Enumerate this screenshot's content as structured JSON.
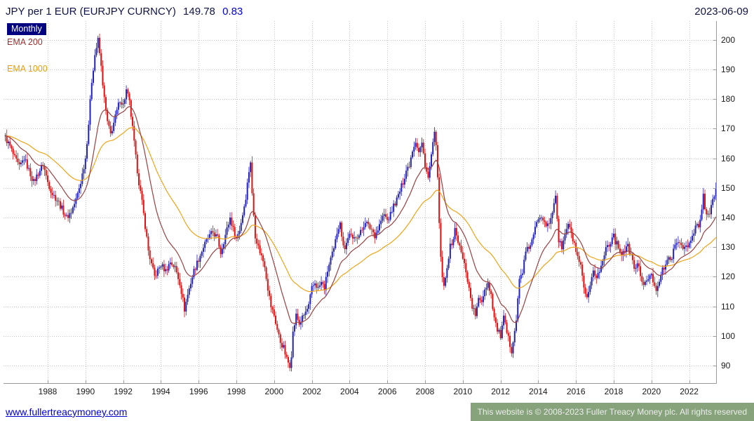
{
  "header": {
    "instrument": "JPY per 1 EUR (EURJPY CURNCY)",
    "price": "149.78",
    "change": "0.83",
    "date": "2023-06-09"
  },
  "legend": {
    "timeframe": "Monthly",
    "ema_fast": "EMA 200",
    "ema_slow": "EMA 1000"
  },
  "footer": {
    "site": "www.fullertreacymoney.com",
    "copyright": "This website is © 2008-2023 Fuller Treacy Money plc. All rights reserved"
  },
  "chart_data": {
    "type": "candlestick",
    "title": "JPY per 1 EUR (EURJPY CURNCY)",
    "timeframe": "Monthly",
    "last_price": 149.78,
    "change": 0.83,
    "up_color": "#2222bb",
    "down_color": "#dd1111",
    "grid_color": "#c4c4c4",
    "axis_color": "#999999",
    "ylim": [
      83.8,
      206.4
    ],
    "xlim": [
      1985.7,
      2023.5
    ],
    "y_ticks": [
      90,
      100,
      110,
      120,
      130,
      140,
      150,
      160,
      170,
      180,
      190,
      200
    ],
    "x_ticks": [
      1988,
      1990,
      1992,
      1994,
      1996,
      1998,
      2000,
      2002,
      2004,
      2006,
      2008,
      2010,
      2012,
      2014,
      2016,
      2018,
      2020,
      2022
    ],
    "overlays": [
      {
        "name": "EMA 200",
        "color": "#994040",
        "period_months": 20
      },
      {
        "name": "EMA 1000",
        "color": "#eda418",
        "period_months": 55
      }
    ],
    "anchors": [
      [
        1985.75,
        167
      ],
      [
        1986.0,
        164
      ],
      [
        1986.25,
        160
      ],
      [
        1986.5,
        157
      ],
      [
        1986.75,
        160
      ],
      [
        1987.0,
        156
      ],
      [
        1987.25,
        152
      ],
      [
        1987.5,
        155
      ],
      [
        1987.75,
        158
      ],
      [
        1988.0,
        152
      ],
      [
        1988.25,
        148
      ],
      [
        1988.5,
        146
      ],
      [
        1988.75,
        143
      ],
      [
        1989.0,
        140
      ],
      [
        1989.25,
        142
      ],
      [
        1989.5,
        146
      ],
      [
        1989.75,
        152
      ],
      [
        1990.0,
        160
      ],
      [
        1990.17,
        172
      ],
      [
        1990.33,
        186
      ],
      [
        1990.5,
        195
      ],
      [
        1990.67,
        200
      ],
      [
        1990.83,
        191
      ],
      [
        1991.0,
        180
      ],
      [
        1991.17,
        172
      ],
      [
        1991.33,
        168
      ],
      [
        1991.5,
        172
      ],
      [
        1991.67,
        176
      ],
      [
        1991.83,
        180
      ],
      [
        1992.0,
        178
      ],
      [
        1992.17,
        183
      ],
      [
        1992.33,
        179
      ],
      [
        1992.5,
        170
      ],
      [
        1992.67,
        160
      ],
      [
        1992.83,
        152
      ],
      [
        1993.0,
        145
      ],
      [
        1993.17,
        137
      ],
      [
        1993.33,
        129
      ],
      [
        1993.5,
        124
      ],
      [
        1993.67,
        120
      ],
      [
        1993.83,
        122
      ],
      [
        1994.0,
        124
      ],
      [
        1994.25,
        122
      ],
      [
        1994.5,
        125
      ],
      [
        1994.75,
        123
      ],
      [
        1995.0,
        118
      ],
      [
        1995.17,
        112
      ],
      [
        1995.25,
        109
      ],
      [
        1995.42,
        114
      ],
      [
        1995.58,
        118
      ],
      [
        1995.75,
        122
      ],
      [
        1996.0,
        126
      ],
      [
        1996.25,
        130
      ],
      [
        1996.5,
        133
      ],
      [
        1996.75,
        135
      ],
      [
        1997.0,
        133
      ],
      [
        1997.17,
        128
      ],
      [
        1997.33,
        132
      ],
      [
        1997.5,
        136
      ],
      [
        1997.67,
        140
      ],
      [
        1997.83,
        136
      ],
      [
        1998.0,
        133
      ],
      [
        1998.17,
        136
      ],
      [
        1998.33,
        141
      ],
      [
        1998.5,
        147
      ],
      [
        1998.67,
        156
      ],
      [
        1998.75,
        159
      ],
      [
        1998.83,
        148
      ],
      [
        1999.0,
        134
      ],
      [
        1999.17,
        130
      ],
      [
        1999.33,
        127
      ],
      [
        1999.5,
        124
      ],
      [
        1999.67,
        116
      ],
      [
        1999.83,
        110
      ],
      [
        2000.0,
        107
      ],
      [
        2000.17,
        102
      ],
      [
        2000.33,
        98
      ],
      [
        2000.5,
        96
      ],
      [
        2000.67,
        92
      ],
      [
        2000.83,
        90
      ],
      [
        2000.92,
        94
      ],
      [
        2001.0,
        101
      ],
      [
        2001.17,
        107
      ],
      [
        2001.33,
        104
      ],
      [
        2001.5,
        106
      ],
      [
        2001.67,
        108
      ],
      [
        2001.83,
        110
      ],
      [
        2002.0,
        116
      ],
      [
        2002.17,
        118
      ],
      [
        2002.33,
        116
      ],
      [
        2002.5,
        118
      ],
      [
        2002.67,
        116
      ],
      [
        2002.83,
        122
      ],
      [
        2003.0,
        126
      ],
      [
        2003.17,
        129
      ],
      [
        2003.33,
        135
      ],
      [
        2003.5,
        139
      ],
      [
        2003.58,
        133
      ],
      [
        2003.75,
        130
      ],
      [
        2003.92,
        133
      ],
      [
        2004.0,
        135
      ],
      [
        2004.17,
        132
      ],
      [
        2004.33,
        134
      ],
      [
        2004.5,
        134
      ],
      [
        2004.67,
        136
      ],
      [
        2004.83,
        139
      ],
      [
        2005.0,
        137
      ],
      [
        2005.17,
        136
      ],
      [
        2005.33,
        134
      ],
      [
        2005.5,
        136
      ],
      [
        2005.67,
        139
      ],
      [
        2005.83,
        141
      ],
      [
        2006.0,
        139
      ],
      [
        2006.17,
        141
      ],
      [
        2006.33,
        144
      ],
      [
        2006.5,
        146
      ],
      [
        2006.67,
        149
      ],
      [
        2006.83,
        152
      ],
      [
        2007.0,
        156
      ],
      [
        2007.17,
        158
      ],
      [
        2007.33,
        163
      ],
      [
        2007.5,
        166
      ],
      [
        2007.67,
        162
      ],
      [
        2007.83,
        165
      ],
      [
        2008.0,
        158
      ],
      [
        2008.17,
        153
      ],
      [
        2008.33,
        161
      ],
      [
        2008.5,
        168
      ],
      [
        2008.58,
        166
      ],
      [
        2008.67,
        152
      ],
      [
        2008.75,
        138
      ],
      [
        2008.83,
        126
      ],
      [
        2008.92,
        120
      ],
      [
        2009.0,
        116
      ],
      [
        2009.08,
        119
      ],
      [
        2009.17,
        124
      ],
      [
        2009.33,
        130
      ],
      [
        2009.5,
        133
      ],
      [
        2009.58,
        136
      ],
      [
        2009.75,
        132
      ],
      [
        2009.83,
        130
      ],
      [
        2010.0,
        126
      ],
      [
        2010.17,
        122
      ],
      [
        2010.33,
        116
      ],
      [
        2010.5,
        110
      ],
      [
        2010.67,
        107
      ],
      [
        2010.83,
        112
      ],
      [
        2011.0,
        112
      ],
      [
        2011.17,
        116
      ],
      [
        2011.33,
        118
      ],
      [
        2011.5,
        114
      ],
      [
        2011.67,
        106
      ],
      [
        2011.83,
        102
      ],
      [
        2012.0,
        100
      ],
      [
        2012.17,
        106
      ],
      [
        2012.33,
        101
      ],
      [
        2012.5,
        97
      ],
      [
        2012.58,
        95
      ],
      [
        2012.67,
        99
      ],
      [
        2012.83,
        105
      ],
      [
        2013.0,
        119
      ],
      [
        2013.17,
        122
      ],
      [
        2013.33,
        128
      ],
      [
        2013.5,
        130
      ],
      [
        2013.67,
        132
      ],
      [
        2013.83,
        136
      ],
      [
        2014.0,
        140
      ],
      [
        2014.17,
        141
      ],
      [
        2014.33,
        139
      ],
      [
        2014.5,
        137
      ],
      [
        2014.67,
        139
      ],
      [
        2014.83,
        145
      ],
      [
        2014.92,
        148
      ],
      [
        2015.08,
        132
      ],
      [
        2015.25,
        130
      ],
      [
        2015.42,
        134
      ],
      [
        2015.58,
        138
      ],
      [
        2015.75,
        134
      ],
      [
        2015.92,
        131
      ],
      [
        2016.08,
        126
      ],
      [
        2016.25,
        123
      ],
      [
        2016.42,
        116
      ],
      [
        2016.58,
        112
      ],
      [
        2016.75,
        116
      ],
      [
        2016.92,
        122
      ],
      [
        2017.08,
        120
      ],
      [
        2017.25,
        122
      ],
      [
        2017.42,
        125
      ],
      [
        2017.58,
        130
      ],
      [
        2017.75,
        131
      ],
      [
        2017.92,
        133
      ],
      [
        2018.0,
        135
      ],
      [
        2018.08,
        132
      ],
      [
        2018.25,
        130
      ],
      [
        2018.42,
        128
      ],
      [
        2018.58,
        129
      ],
      [
        2018.75,
        130
      ],
      [
        2018.92,
        127
      ],
      [
        2019.08,
        123
      ],
      [
        2019.25,
        124
      ],
      [
        2019.42,
        121
      ],
      [
        2019.58,
        117
      ],
      [
        2019.75,
        118
      ],
      [
        2019.92,
        121
      ],
      [
        2020.08,
        119
      ],
      [
        2020.25,
        116
      ],
      [
        2020.42,
        119
      ],
      [
        2020.58,
        122
      ],
      [
        2020.75,
        124
      ],
      [
        2020.92,
        126
      ],
      [
        2021.08,
        127
      ],
      [
        2021.25,
        130
      ],
      [
        2021.42,
        132
      ],
      [
        2021.58,
        131
      ],
      [
        2021.75,
        130
      ],
      [
        2021.92,
        130
      ],
      [
        2022.08,
        132
      ],
      [
        2022.25,
        135
      ],
      [
        2022.42,
        138
      ],
      [
        2022.5,
        136
      ],
      [
        2022.58,
        139
      ],
      [
        2022.67,
        143
      ],
      [
        2022.75,
        148
      ],
      [
        2022.83,
        143
      ],
      [
        2022.92,
        140
      ],
      [
        2023.0,
        141
      ],
      [
        2023.08,
        142
      ],
      [
        2023.17,
        144
      ],
      [
        2023.25,
        146
      ],
      [
        2023.33,
        148
      ],
      [
        2023.42,
        149.78
      ]
    ]
  }
}
